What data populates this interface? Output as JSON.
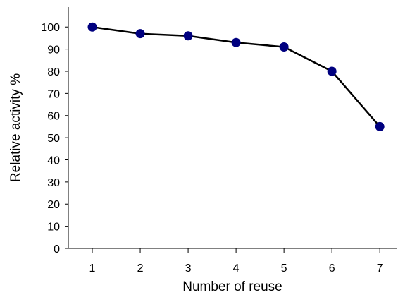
{
  "chart_data": {
    "type": "line",
    "title": "",
    "xlabel": "Number of reuse",
    "ylabel": "Relative activity %",
    "x": [
      1,
      2,
      3,
      4,
      5,
      6,
      7
    ],
    "x_tick_labels": [
      "1",
      "2",
      "3",
      "4",
      "5",
      "6",
      "7"
    ],
    "xlim": [
      0.5,
      7.35
    ],
    "ylim": [
      0,
      109
    ],
    "y_ticks": [
      0,
      10,
      20,
      30,
      40,
      50,
      60,
      70,
      80,
      90,
      100
    ],
    "y_tick_labels": [
      "0",
      "10",
      "20",
      "30",
      "40",
      "50",
      "60",
      "70",
      "80",
      "90",
      "100"
    ],
    "series": [
      {
        "values": [
          100,
          97,
          96,
          93,
          91,
          80,
          55
        ]
      }
    ],
    "grid": false,
    "legend": "none",
    "line_color": "#000000",
    "marker_color": "#00007f"
  }
}
